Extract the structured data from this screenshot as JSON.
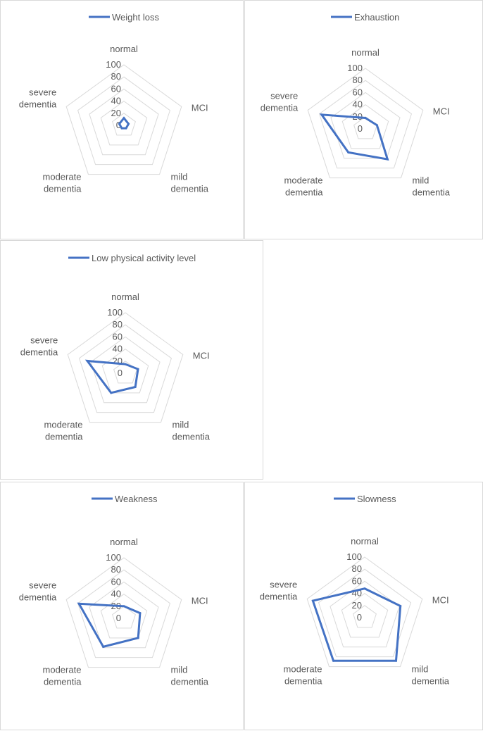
{
  "colors": {
    "series": "#4472c4",
    "grid": "#d9d9d9",
    "text": "#595959"
  },
  "chart_data": [
    {
      "type": "radar",
      "categories": [
        "normal",
        "MCI",
        "mild dementia",
        "moderate dementia",
        "severe dementia"
      ],
      "ticks": [
        "0",
        "20",
        "40",
        "60",
        "80",
        "100"
      ],
      "ylim": [
        0,
        100
      ],
      "series": [
        {
          "name": "Weight loss",
          "values": [
            12,
            8,
            6,
            6,
            8
          ]
        }
      ]
    },
    {
      "type": "radar",
      "categories": [
        "normal",
        "MCI",
        "mild dementia",
        "moderate dementia",
        "severe dementia"
      ],
      "ticks": [
        "0",
        "20",
        "40",
        "60",
        "80",
        "100"
      ],
      "ylim": [
        0,
        100
      ],
      "series": [
        {
          "name": "Exhaustion",
          "values": [
            18,
            20,
            62,
            48,
            76
          ]
        }
      ]
    },
    {
      "type": "radar",
      "categories": [
        "normal",
        "MCI",
        "mild dementia",
        "moderate dementia",
        "severe dementia"
      ],
      "ticks": [
        "0",
        "20",
        "40",
        "60",
        "80",
        "100"
      ],
      "ylim": [
        0,
        100
      ],
      "series": [
        {
          "name": "Low physical activity level",
          "values": [
            15,
            22,
            28,
            40,
            66
          ]
        }
      ]
    },
    {
      "type": "radar",
      "categories": [
        "normal",
        "MCI",
        "mild dementia",
        "moderate dementia",
        "severe dementia"
      ],
      "ticks": [
        "0",
        "20",
        "40",
        "60",
        "80",
        "100"
      ],
      "ylim": [
        0,
        100
      ],
      "series": [
        {
          "name": "Weakness",
          "values": [
            20,
            28,
            40,
            58,
            78
          ]
        }
      ]
    },
    {
      "type": "radar",
      "categories": [
        "normal",
        "MCI",
        "mild dementia",
        "moderate dementia",
        "severe dementia"
      ],
      "ticks": [
        "0",
        "20",
        "40",
        "60",
        "80",
        "100"
      ],
      "ylim": [
        0,
        100
      ],
      "series": [
        {
          "name": "Slowness",
          "values": [
            48,
            62,
            88,
            88,
            90
          ]
        }
      ]
    }
  ]
}
